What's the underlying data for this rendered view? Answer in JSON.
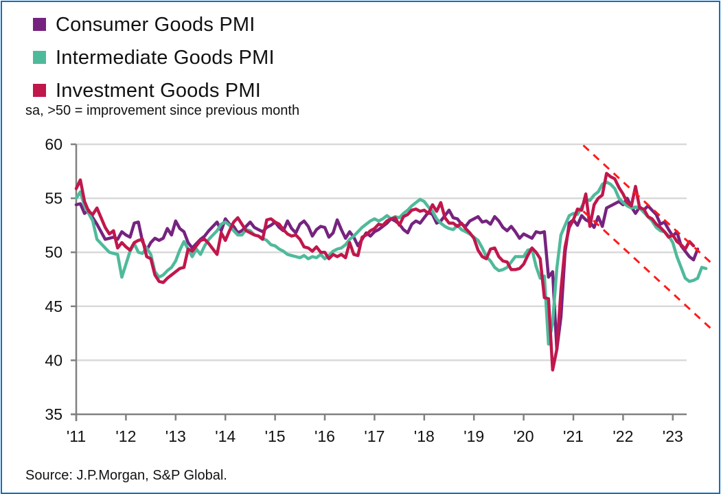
{
  "chart_data": {
    "type": "line",
    "title": "",
    "subtitle": "sa, >50 = improvement since previous month",
    "source": "Source: J.P.Morgan, S&P Global.",
    "xlabel": "",
    "ylabel": "",
    "ylim": [
      35,
      60
    ],
    "yticks": [
      35,
      40,
      45,
      50,
      55,
      60
    ],
    "ytick_labels": [
      "35",
      "40",
      "45",
      "50",
      "55",
      "60"
    ],
    "x_start": "2011-01",
    "x_frequency": "monthly",
    "xlim_years": [
      2011,
      2023.25
    ],
    "xticks": [
      2011,
      2012,
      2013,
      2014,
      2015,
      2016,
      2017,
      2018,
      2019,
      2020,
      2021,
      2022,
      2023
    ],
    "xtick_labels": [
      "'11",
      "'12",
      "'13",
      "'14",
      "'15",
      "'16",
      "'17",
      "'18",
      "'19",
      "'20",
      "'21",
      "'22",
      "'23"
    ],
    "grid": "horizontal",
    "legend_position": "top-left",
    "series": [
      {
        "name": "Consumer Goods PMI",
        "color": "#76237f",
        "values": [
          54.4,
          54.5,
          53.6,
          53.9,
          53.2,
          52.6,
          51.9,
          51.2,
          51.3,
          51.4,
          51.2,
          51.9,
          51.6,
          51.4,
          52.7,
          52.8,
          51.0,
          50.2,
          50.9,
          51.3,
          51.1,
          51.3,
          52.2,
          51.6,
          52.9,
          52.2,
          51.9,
          50.9,
          50.4,
          50.8,
          51.2,
          51.5,
          52.0,
          52.4,
          52.8,
          52.0,
          53.1,
          52.6,
          52.4,
          51.8,
          52.0,
          52.4,
          52.8,
          52.3,
          52.1,
          51.9,
          52.3,
          52.5,
          52.8,
          52.3,
          52.0,
          52.9,
          52.2,
          51.8,
          52.6,
          52.9,
          52.4,
          51.5,
          52.1,
          52.4,
          52.3,
          51.4,
          51.8,
          53.0,
          52.1,
          51.3,
          51.9,
          51.4,
          50.6,
          51.2,
          51.8,
          51.5,
          51.9,
          52.1,
          52.4,
          52.7,
          53.1,
          52.9,
          52.6,
          52.1,
          51.8,
          52.6,
          52.9,
          52.7,
          53.2,
          53.7,
          53.5,
          52.7,
          52.9,
          53.4,
          53.9,
          53.2,
          53.1,
          52.6,
          52.4,
          52.9,
          53.1,
          53.3,
          52.8,
          52.9,
          52.6,
          53.3,
          52.9,
          52.3,
          52.0,
          52.4,
          51.9,
          51.3,
          51.7,
          51.5,
          51.3,
          51.9,
          51.8,
          51.9,
          47.7,
          48.2,
          41.0,
          44.0,
          50.0,
          52.7,
          53.0,
          52.5,
          53.4,
          53.0,
          52.8,
          52.3,
          53.3,
          52.4,
          54.1,
          54.3,
          54.5,
          54.7,
          54.4,
          55.0,
          54.2,
          53.6,
          54.2,
          53.9,
          54.3,
          53.9,
          53.5,
          52.6,
          52.8,
          52.1,
          51.5,
          51.9,
          50.6,
          50.1,
          49.6,
          49.3,
          50.3
        ]
      },
      {
        "name": "Intermediate Goods PMI",
        "color": "#4fba9b",
        "values": [
          55.0,
          55.6,
          54.3,
          53.6,
          52.9,
          51.2,
          50.8,
          50.4,
          50.0,
          49.9,
          49.8,
          47.7,
          48.9,
          50.1,
          50.8,
          50.0,
          49.9,
          50.4,
          49.8,
          48.2,
          47.7,
          47.9,
          48.3,
          48.6,
          49.2,
          50.2,
          51.0,
          50.3,
          49.6,
          50.3,
          49.8,
          50.6,
          51.2,
          51.6,
          52.0,
          52.6,
          52.8,
          52.5,
          52.0,
          51.6,
          51.6,
          52.1,
          52.0,
          51.6,
          51.5,
          51.3,
          51.1,
          50.7,
          50.6,
          50.3,
          50.1,
          49.8,
          49.7,
          49.6,
          49.5,
          49.7,
          49.4,
          49.6,
          49.5,
          49.8,
          49.4,
          49.7,
          50.1,
          50.3,
          50.4,
          50.7,
          51.2,
          51.5,
          51.9,
          52.3,
          52.6,
          52.9,
          53.1,
          52.9,
          53.1,
          53.4,
          53.1,
          53.3,
          53.2,
          53.6,
          53.9,
          54.3,
          54.6,
          54.9,
          54.7,
          54.2,
          53.8,
          53.1,
          52.7,
          52.4,
          52.2,
          52.1,
          52.5,
          52.1,
          51.9,
          51.7,
          51.4,
          51.1,
          50.4,
          49.6,
          49.2,
          48.6,
          48.3,
          48.4,
          48.6,
          49.1,
          49.6,
          49.6,
          49.6,
          50.2,
          50.3,
          48.7,
          47.6,
          47.8,
          41.5,
          43.5,
          48.5,
          51.6,
          52.5,
          53.4,
          53.6,
          53.5,
          54.2,
          54.9,
          54.8,
          55.3,
          55.6,
          56.3,
          56.5,
          56.3,
          55.9,
          55.0,
          54.6,
          54.3,
          54.1,
          54.2,
          54.1,
          53.7,
          53.3,
          52.9,
          52.3,
          52.0,
          51.9,
          51.5,
          50.9,
          49.6,
          48.6,
          47.6,
          47.3,
          47.4,
          47.6,
          48.6,
          48.5
        ]
      },
      {
        "name": "Investment Goods PMI",
        "color": "#c0174c",
        "values": [
          55.9,
          56.7,
          54.7,
          53.8,
          53.5,
          54.1,
          53.2,
          52.3,
          51.7,
          52.0,
          50.4,
          50.9,
          50.5,
          50.2,
          50.9,
          51.1,
          51.2,
          49.6,
          49.4,
          47.9,
          47.3,
          47.2,
          47.6,
          47.9,
          48.2,
          48.5,
          48.6,
          50.3,
          50.1,
          50.6,
          51.1,
          51.2,
          50.8,
          50.3,
          49.8,
          51.8,
          51.1,
          52.0,
          52.8,
          53.2,
          52.6,
          52.0,
          51.8,
          51.6,
          51.5,
          51.2,
          53.0,
          53.1,
          52.8,
          52.6,
          52.1,
          51.7,
          51.5,
          51.6,
          51.2,
          50.5,
          50.4,
          50.1,
          50.5,
          50.0,
          50.0,
          49.4,
          49.8,
          49.6,
          49.8,
          49.5,
          50.9,
          49.8,
          49.7,
          51.4,
          51.6,
          52.0,
          52.2,
          52.6,
          52.5,
          52.9,
          53.1,
          53.2,
          52.5,
          53.3,
          53.5,
          53.9,
          54.0,
          53.8,
          53.9,
          53.6,
          54.4,
          53.8,
          54.6,
          53.2,
          52.7,
          52.7,
          52.4,
          52.7,
          52.2,
          51.8,
          51.3,
          50.2,
          49.6,
          49.4,
          50.3,
          50.4,
          49.6,
          49.2,
          49.1,
          48.4,
          48.4,
          48.5,
          48.9,
          49.7,
          50.4,
          50.0,
          49.4,
          45.8,
          45.7,
          39.1,
          41.0,
          46.5,
          50.5,
          52.3,
          53.0,
          54.0,
          53.9,
          55.4,
          52.4,
          54.4,
          55.0,
          55.3,
          57.3,
          57.0,
          56.8,
          56.0,
          55.4,
          54.6,
          54.3,
          56.1,
          54.1,
          54.0,
          53.3,
          53.1,
          52.6,
          52.3,
          51.9,
          51.4,
          51.6,
          51.0,
          50.7,
          50.3,
          51.0,
          50.6
        ]
      }
    ]
  },
  "legend": [
    {
      "label": "Consumer Goods PMI",
      "color": "#76237f"
    },
    {
      "label": "Intermediate Goods PMI",
      "color": "#4fba9b"
    },
    {
      "label": "Investment Goods PMI",
      "color": "#c0174c"
    }
  ],
  "annotations": {
    "trend_channel": {
      "color": "#ff1a1a",
      "style": "dashed",
      "upper": {
        "from": [
          2021.2,
          59.9
        ],
        "to": [
          2023.8,
          48.9
        ]
      },
      "lower": {
        "from": [
          2021.2,
          53.8
        ],
        "to": [
          2023.8,
          42.8
        ]
      }
    }
  }
}
